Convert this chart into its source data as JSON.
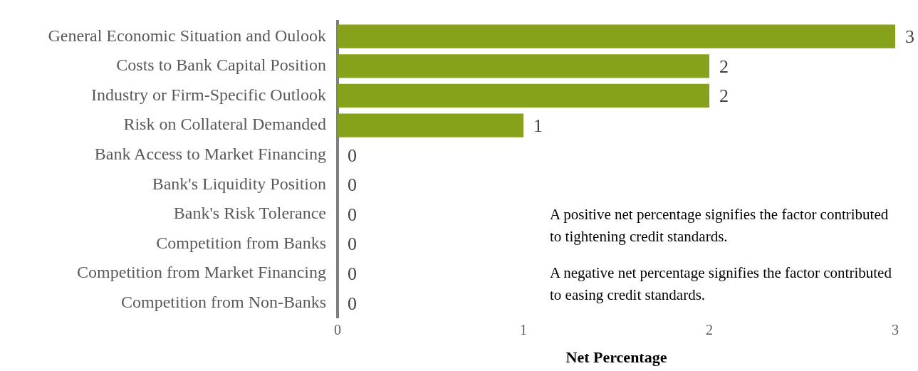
{
  "chart_data": {
    "type": "bar",
    "orientation": "horizontal",
    "categories": [
      "General Economic Situation and Oulook",
      "Costs to Bank Capital Position",
      "Industry or Firm-Specific Outlook",
      "Risk on Collateral Demanded",
      "Bank Access to Market Financing",
      "Bank's Liquidity Position",
      "Bank's Risk Tolerance",
      "Competition from Banks",
      "Competition from Market Financing",
      "Competition from Non-Banks"
    ],
    "values": [
      3,
      2,
      2,
      1,
      0,
      0,
      0,
      0,
      0,
      0
    ],
    "color": "#86a21a",
    "xlim": [
      0,
      3
    ],
    "xticks": [
      0,
      1,
      2,
      3
    ],
    "xlabel": "Net Percentage",
    "data_labels": true,
    "grid": false,
    "legend": false,
    "annotations": [
      "A positive net percentage signifies the factor contributed to tightening credit standards.",
      "A negative net percentage signifies the factor contributed to easing credit standards."
    ]
  }
}
